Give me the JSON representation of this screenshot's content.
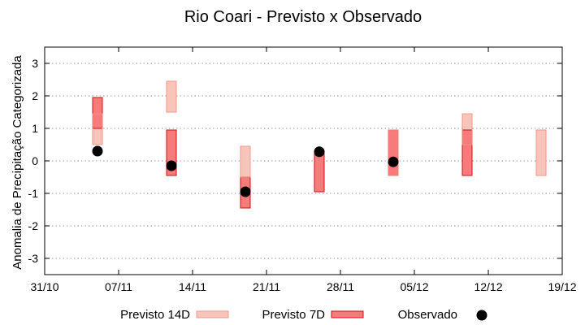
{
  "chart_data": {
    "type": "range-bar",
    "title": "Rio Coari - Previsto x Observado",
    "xlabel": "",
    "ylabel": "Anomalia de Precipitação Categorizada",
    "ylim": [
      -3.5,
      3.5
    ],
    "yticks": [
      -3,
      -2,
      -1,
      0,
      1,
      2,
      3
    ],
    "ytick_labels": [
      "-3",
      "-2",
      "-1",
      "0",
      "1",
      "2",
      "3"
    ],
    "xlim_days": [
      0,
      49
    ],
    "xticks": [
      {
        "day": 0,
        "label": "31/10"
      },
      {
        "day": 7,
        "label": "07/11"
      },
      {
        "day": 14,
        "label": "14/11"
      },
      {
        "day": 21,
        "label": "21/11"
      },
      {
        "day": 28,
        "label": "28/11"
      },
      {
        "day": 35,
        "label": "05/12"
      },
      {
        "day": 42,
        "label": "12/12"
      },
      {
        "day": 49,
        "label": "19/12"
      }
    ],
    "grid": "horizontal-dotted",
    "legend_position": "bottom",
    "series": [
      {
        "name": "Previsto 14D",
        "kind": "range",
        "points": [
          {
            "day": 5,
            "low": 0.5,
            "high": 1.45
          },
          {
            "day": 12,
            "low": 1.5,
            "high": 2.45
          },
          {
            "day": 19,
            "low": -0.5,
            "high": 0.45
          },
          {
            "day": 33,
            "low": -0.45,
            "high": 0.95
          },
          {
            "day": 40,
            "low": 0.5,
            "high": 1.45
          },
          {
            "day": 47,
            "low": -0.45,
            "high": 0.95
          }
        ]
      },
      {
        "name": "Previsto 7D",
        "kind": "range",
        "points": [
          {
            "day": 5,
            "low": 1.0,
            "high": 1.95
          },
          {
            "day": 12,
            "low": -0.45,
            "high": 0.95
          },
          {
            "day": 19,
            "low": -1.45,
            "high": -0.5
          },
          {
            "day": 26,
            "low": -0.95,
            "high": 0.3
          },
          {
            "day": 33,
            "low": -0.45,
            "high": 0.95
          },
          {
            "day": 40,
            "low": -0.45,
            "high": 0.95
          }
        ]
      },
      {
        "name": "Observado",
        "kind": "point",
        "points": [
          {
            "day": 5,
            "value": 0.3
          },
          {
            "day": 12,
            "value": -0.15
          },
          {
            "day": 19,
            "value": -0.95
          },
          {
            "day": 26,
            "value": 0.28
          },
          {
            "day": 33,
            "value": -0.03
          }
        ]
      }
    ]
  },
  "colors": {
    "previsto14_fill": "#f9c4b9",
    "previsto14_stroke": "#f1978a",
    "previsto7_fill": "#f87b7b",
    "previsto7_stroke": "#cc1010",
    "observado": "#000000",
    "grid": "#999999",
    "axis": "#000000"
  }
}
